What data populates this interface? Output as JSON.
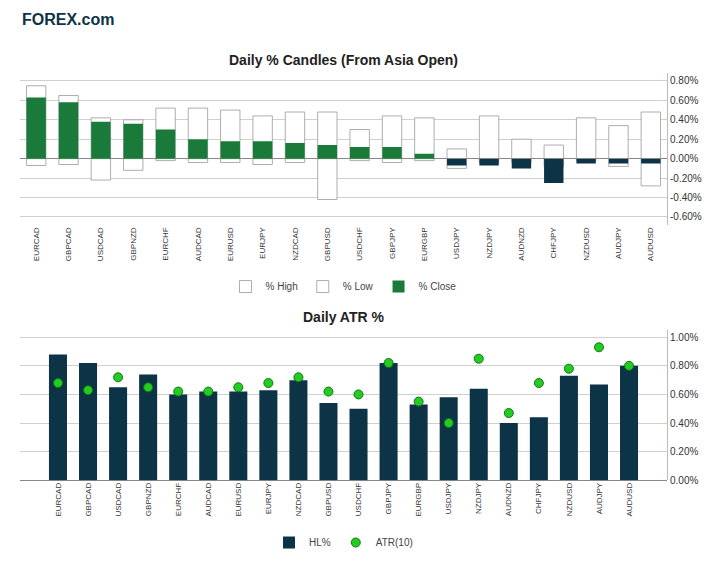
{
  "chart_data": [
    {
      "type": "bar",
      "title": "Daily % Candles (From Asia Open)",
      "categories": [
        "EURCAD",
        "GBPCAD",
        "USDCAD",
        "GBPNZD",
        "EURCHF",
        "AUDCAD",
        "EURUSD",
        "EURJPY",
        "NZDCAD",
        "GBPUSD",
        "USDCHF",
        "GBPJPY",
        "EURGBP",
        "USDJPY",
        "NZDJPY",
        "AUDNZD",
        "CHFJPY",
        "NZDUSD",
        "AUDJPY",
        "AUDUSD"
      ],
      "series": [
        {
          "name": "% High",
          "color": "#ffffff",
          "values": [
            0.75,
            0.65,
            0.42,
            0.4,
            0.52,
            0.52,
            0.5,
            0.44,
            0.48,
            0.48,
            0.3,
            0.44,
            0.42,
            0.1,
            0.44,
            0.2,
            0.14,
            0.42,
            0.34,
            0.48
          ]
        },
        {
          "name": "% Low",
          "color": "#ffffff",
          "values": [
            -0.07,
            -0.06,
            -0.22,
            -0.12,
            -0.02,
            -0.04,
            -0.04,
            -0.06,
            -0.04,
            -0.42,
            -0.02,
            -0.04,
            -0.02,
            -0.1,
            -0.04,
            -0.04,
            -0.08,
            -0.02,
            -0.08,
            -0.28
          ]
        },
        {
          "name": "% Close",
          "colors": [
            "#1a7a3a",
            "#1a7a3a",
            "#1a7a3a",
            "#1a7a3a",
            "#1a7a3a",
            "#1a7a3a",
            "#1a7a3a",
            "#1a7a3a",
            "#1a7a3a",
            "#1a7a3a",
            "#1a7a3a",
            "#1a7a3a",
            "#1a7a3a",
            "#0d3347",
            "#0d3347",
            "#0d3347",
            "#0d3347",
            "#0d3347",
            "#0d3347",
            "#0d3347"
          ],
          "values": [
            0.63,
            0.58,
            0.38,
            0.36,
            0.3,
            0.2,
            0.18,
            0.18,
            0.16,
            0.14,
            0.12,
            0.12,
            0.05,
            -0.07,
            -0.07,
            -0.1,
            -0.25,
            -0.05,
            -0.05,
            -0.05
          ]
        }
      ],
      "ylim": [
        -0.68,
        0.88
      ],
      "yticks": [
        {
          "value": -0.6,
          "label": "-0.60%"
        },
        {
          "value": -0.4,
          "label": "-0.40%"
        },
        {
          "value": -0.2,
          "label": "-0.20%"
        },
        {
          "value": 0,
          "label": "0.00%"
        },
        {
          "value": 0.2,
          "label": "0.20%"
        },
        {
          "value": 0.4,
          "label": "0.40%"
        },
        {
          "value": 0.6,
          "label": "0.60%"
        },
        {
          "value": 0.8,
          "label": "0.80%"
        }
      ],
      "grid": true,
      "legend": "bottom",
      "annotations": [
        "FOREX.com"
      ]
    },
    {
      "type": "bar",
      "title": "Daily ATR %",
      "categories": [
        "EURCAD",
        "GBPCAD",
        "USDCAD",
        "GBPNZD",
        "EURCHF",
        "AUDCAD",
        "EURUSD",
        "EURJPY",
        "NZDCAD",
        "GBPUSD",
        "USDCHF",
        "GBPJPY",
        "EURGBP",
        "USDJPY",
        "NZDJPY",
        "AUDNZD",
        "CHFJPY",
        "NZDUSD",
        "AUDJPY",
        "AUDUSD"
      ],
      "series": [
        {
          "name": "HL%",
          "type": "bar",
          "color": "#0d3347",
          "values": [
            0.88,
            0.82,
            0.65,
            0.74,
            0.6,
            0.62,
            0.62,
            0.63,
            0.7,
            0.54,
            0.5,
            0.82,
            0.53,
            0.58,
            0.64,
            0.4,
            0.44,
            0.73,
            0.67,
            0.8
          ]
        },
        {
          "name": "ATR(10)",
          "type": "scatter",
          "color": "#22cc22",
          "marker": "circle",
          "values": [
            0.68,
            0.63,
            0.72,
            0.65,
            0.62,
            0.62,
            0.65,
            0.68,
            0.72,
            0.62,
            0.6,
            0.82,
            0.55,
            0.4,
            0.85,
            0.47,
            0.68,
            0.78,
            0.93,
            0.8
          ]
        }
      ],
      "ylim": [
        0,
        1.05
      ],
      "yticks": [
        {
          "value": 0,
          "label": "0.00%"
        },
        {
          "value": 0.2,
          "label": "0.20%"
        },
        {
          "value": 0.4,
          "label": "0.40%"
        },
        {
          "value": 0.6,
          "label": "0.60%"
        },
        {
          "value": 0.8,
          "label": "0.80%"
        },
        {
          "value": 1,
          "label": "1.00%"
        }
      ],
      "grid": true,
      "legend": "bottom"
    }
  ]
}
